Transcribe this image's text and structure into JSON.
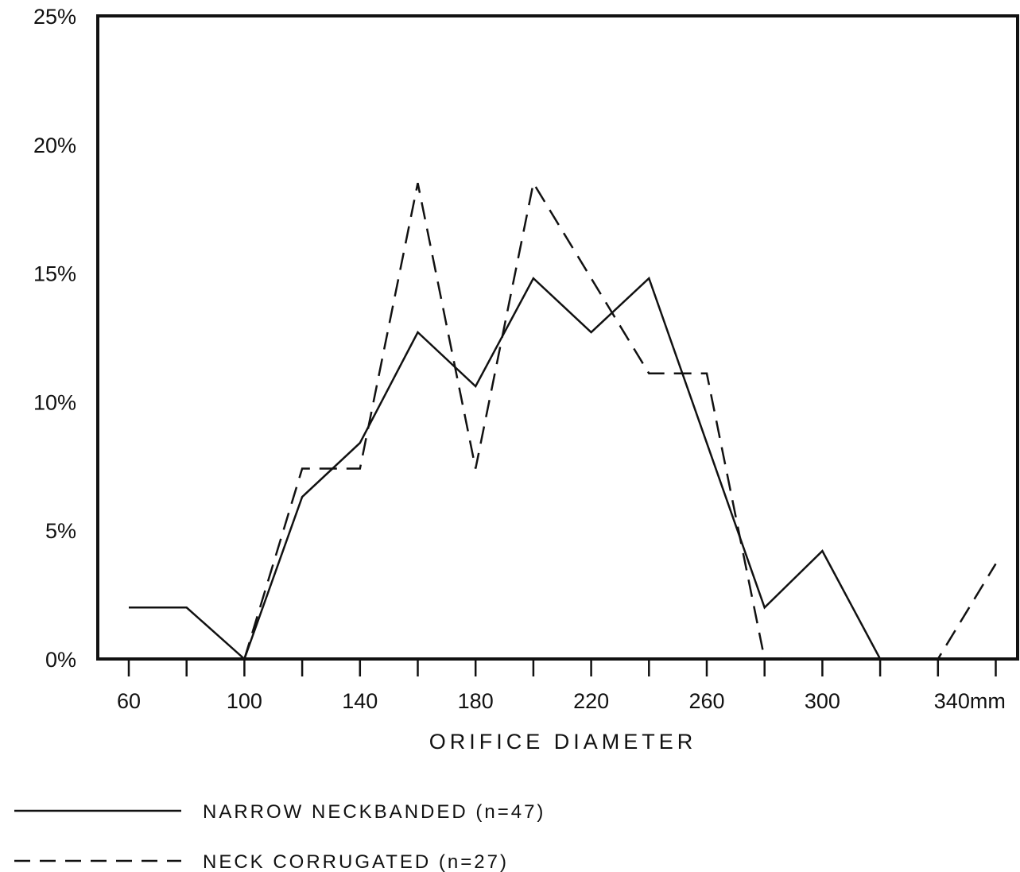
{
  "chart_data": {
    "type": "line",
    "xlabel": "ORIFICE DIAMETER",
    "x_tick_labels": [
      "60",
      "100",
      "140",
      "180",
      "220",
      "260",
      "300",
      "340mm"
    ],
    "x_tick_values": [
      60,
      100,
      140,
      180,
      220,
      260,
      300,
      340
    ],
    "x_minor_ticks": [
      80,
      120,
      160,
      200,
      240,
      280,
      320,
      360
    ],
    "y_tick_labels": [
      "0%",
      "5%",
      "10%",
      "15%",
      "20%",
      "25%"
    ],
    "y_tick_values": [
      0,
      5,
      10,
      15,
      20,
      25
    ],
    "xlim": [
      50,
      370
    ],
    "ylim": [
      0,
      25
    ],
    "grid": false,
    "legend_position": "bottom-left",
    "series": [
      {
        "name": "NARROW NECKBANDED (n=47)",
        "style": "solid",
        "x": [
          60,
          80,
          100,
          120,
          140,
          160,
          180,
          200,
          220,
          240,
          260,
          280,
          300,
          320,
          340
        ],
        "y": [
          2.0,
          2.0,
          0.0,
          6.3,
          8.4,
          12.7,
          10.6,
          14.8,
          12.7,
          14.8,
          8.4,
          2.0,
          4.2,
          0.0,
          0.0
        ]
      },
      {
        "name": "NECK CORRUGATED (n=27)",
        "style": "dashed",
        "x": [
          100,
          120,
          140,
          160,
          180,
          200,
          220,
          240,
          260,
          280,
          300,
          320,
          340,
          360
        ],
        "y": [
          0.0,
          7.4,
          7.4,
          18.5,
          7.4,
          18.5,
          14.8,
          11.1,
          11.1,
          0.0,
          0.0,
          0.0,
          0.0,
          3.7
        ]
      }
    ]
  },
  "colors": {
    "ink": "#111111",
    "background": "#ffffff"
  }
}
